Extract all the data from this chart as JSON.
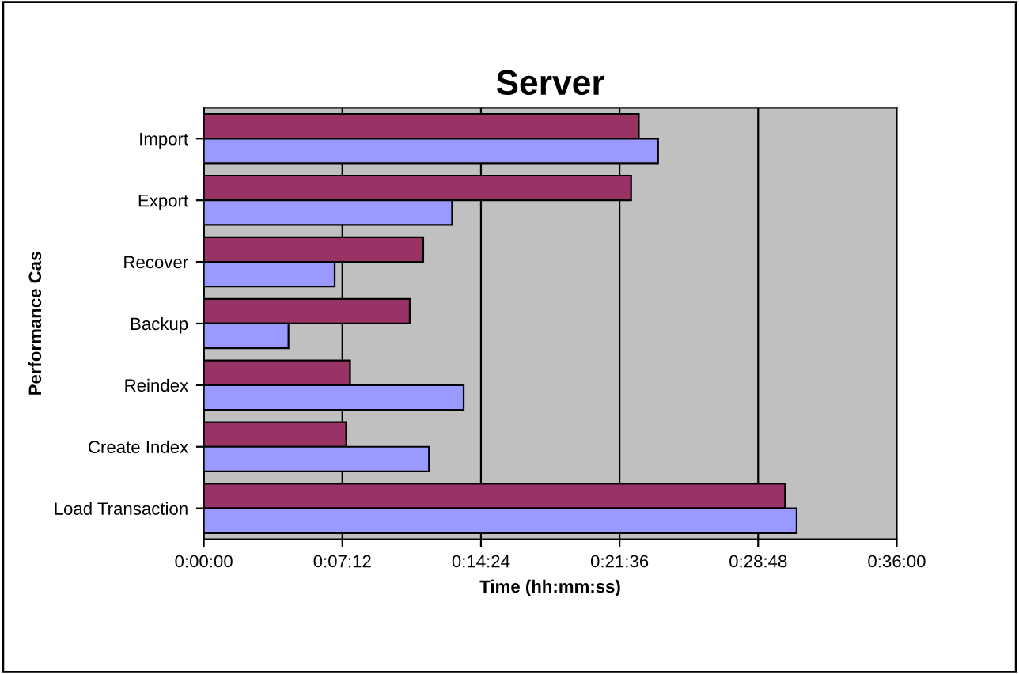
{
  "chart_data": {
    "type": "bar",
    "orientation": "horizontal",
    "title": "Server",
    "xlabel": "Time (hh:mm:ss)",
    "ylabel": "Performance Cas",
    "categories": [
      "Import",
      "Export",
      "Recover",
      "Backup",
      "Reindex",
      "Create Index",
      "Load Transaction"
    ],
    "series": [
      {
        "color": "#993366",
        "values": [
          22.6,
          22.2,
          11.4,
          10.7,
          7.6,
          7.4,
          30.2
        ]
      },
      {
        "color": "#9999ff",
        "values": [
          23.6,
          12.9,
          6.8,
          4.4,
          13.5,
          11.7,
          30.8
        ]
      }
    ],
    "xlim": [
      0,
      36
    ],
    "xticks": [
      {
        "value": 0,
        "label": "0:00:00"
      },
      {
        "value": 7.2,
        "label": "0:07:12"
      },
      {
        "value": 14.4,
        "label": "0:14:24"
      },
      {
        "value": 21.6,
        "label": "0:21:36"
      },
      {
        "value": 28.8,
        "label": "0:28:48"
      },
      {
        "value": 36,
        "label": "0:36:00"
      }
    ],
    "grid": "x"
  }
}
